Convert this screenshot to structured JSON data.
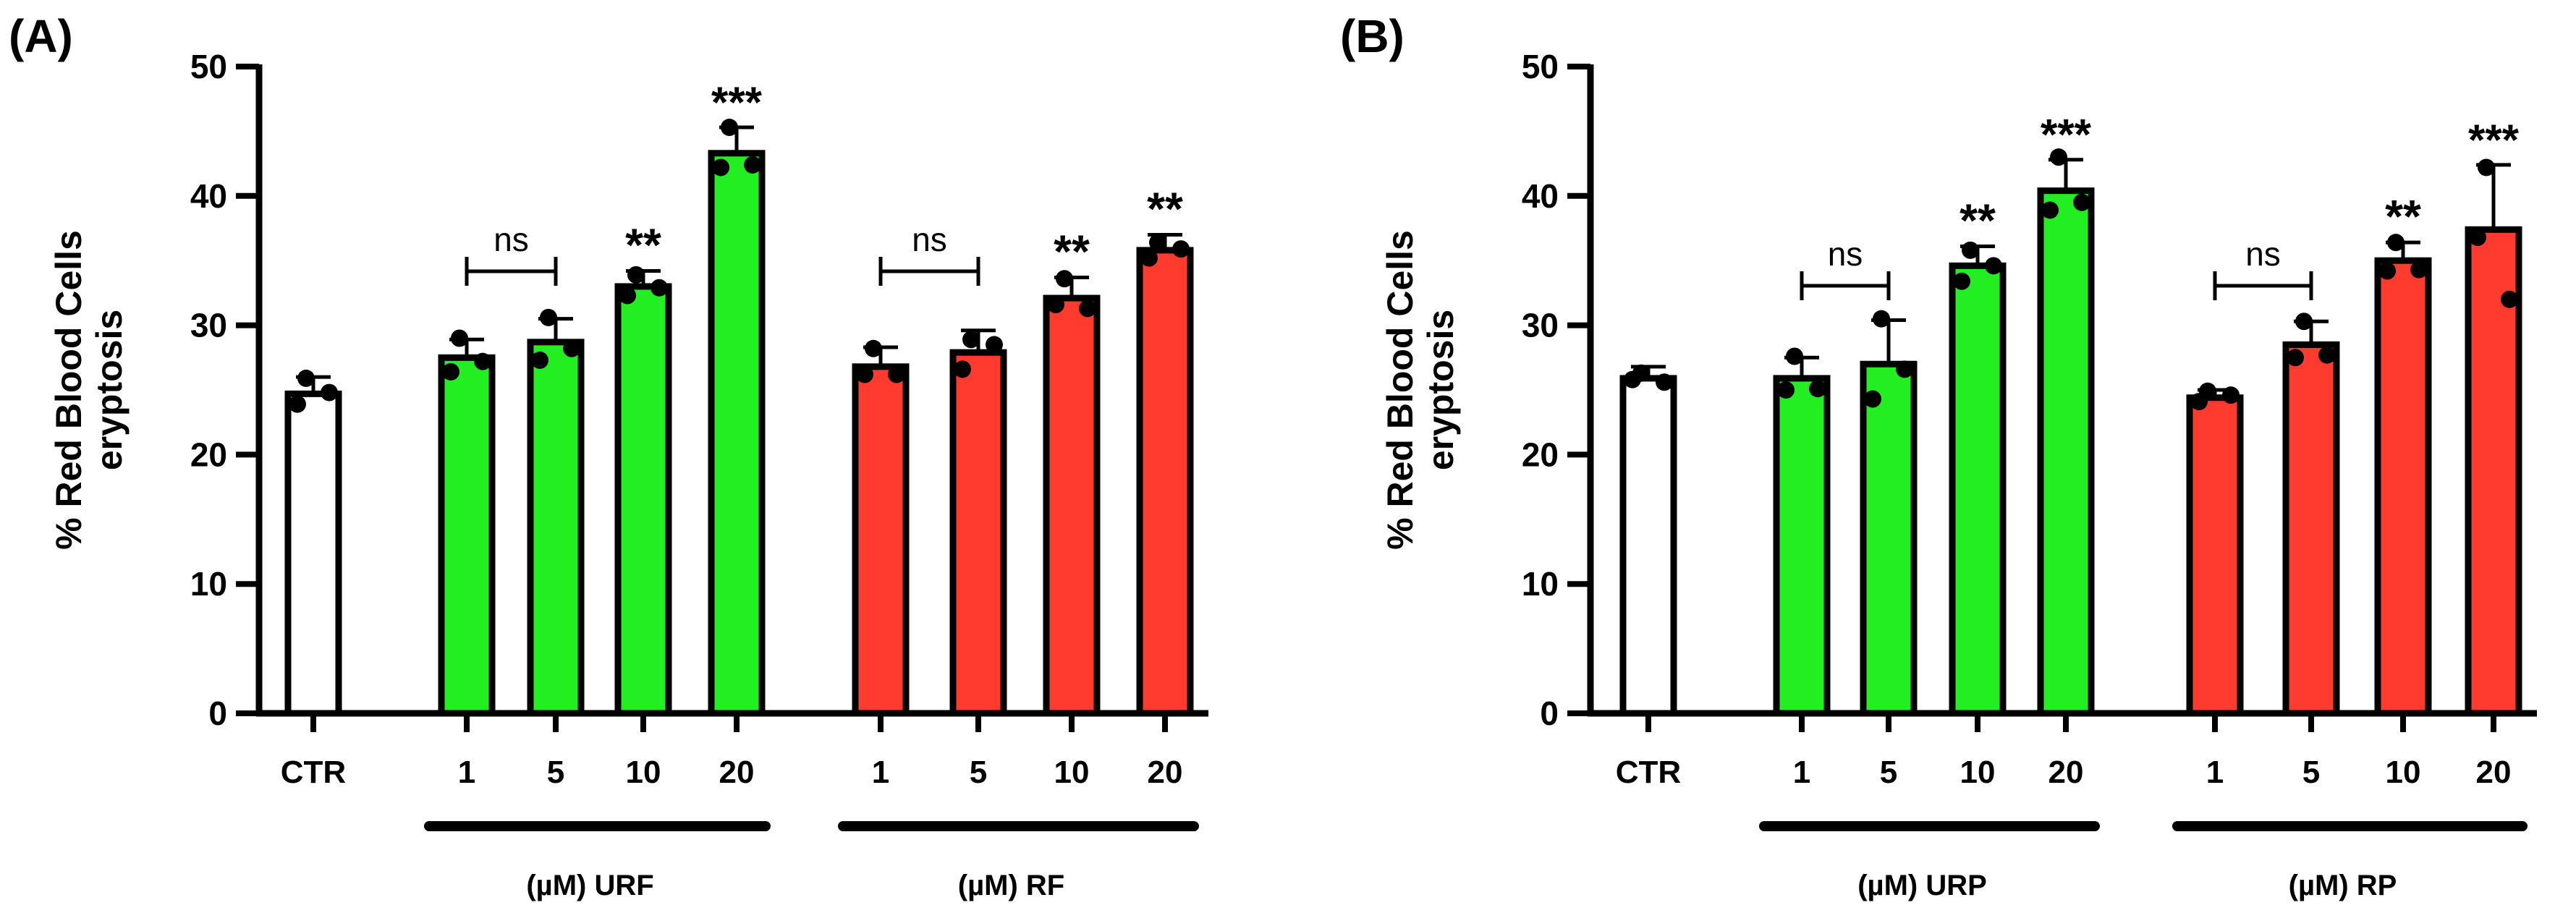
{
  "chart_data": [
    {
      "panel_label": "(A)",
      "type": "bar",
      "ylabel_line1": "% Red Blood Cells",
      "ylabel_line2": "eryptosis",
      "ylim": [
        0,
        50
      ],
      "yticks": [
        "0",
        "10",
        "20",
        "30",
        "40",
        "50"
      ],
      "ytick_values": [
        0,
        10,
        20,
        30,
        40,
        50
      ],
      "bars": [
        {
          "label": "CTR",
          "value": 24.7,
          "error": 1.3,
          "color": "#ffffff",
          "points": [
            25.9,
            23.9,
            24.8
          ],
          "sig": ""
        },
        {
          "label": "1",
          "value": 27.5,
          "error": 1.4,
          "color": "#22ee22",
          "points": [
            29.0,
            26.4,
            27.2
          ],
          "sig": ""
        },
        {
          "label": "5",
          "value": 28.7,
          "error": 1.8,
          "color": "#22ee22",
          "points": [
            30.6,
            27.3,
            28.2
          ],
          "sig": ""
        },
        {
          "label": "10",
          "value": 33.0,
          "error": 1.2,
          "color": "#22ee22",
          "points": [
            33.9,
            32.3,
            32.9
          ],
          "sig": "**"
        },
        {
          "label": "20",
          "value": 43.3,
          "error": 2.0,
          "color": "#22ee22",
          "points": [
            45.3,
            42.2,
            42.4
          ],
          "sig": "***"
        },
        {
          "label": "1",
          "value": 26.8,
          "error": 1.5,
          "color": "#ff3b30",
          "points": [
            28.2,
            26.2,
            26.2
          ],
          "sig": ""
        },
        {
          "label": "5",
          "value": 27.9,
          "error": 1.7,
          "color": "#ff3b30",
          "points": [
            28.9,
            26.6,
            28.5
          ],
          "sig": ""
        },
        {
          "label": "10",
          "value": 32.1,
          "error": 1.6,
          "color": "#ff3b30",
          "points": [
            33.6,
            31.6,
            31.3
          ],
          "sig": "**"
        },
        {
          "label": "20",
          "value": 35.8,
          "error": 1.2,
          "color": "#ff3b30",
          "points": [
            36.4,
            35.2,
            35.9
          ],
          "sig": "**"
        }
      ],
      "ns_brackets": [
        {
          "from_bar": 1,
          "to_bar": 2,
          "text": "ns"
        },
        {
          "from_bar": 5,
          "to_bar": 6,
          "text": "ns"
        }
      ],
      "groups": [
        {
          "label": "(µM) URF",
          "from_bar": 1,
          "to_bar": 4
        },
        {
          "label": "(µM) RF",
          "from_bar": 5,
          "to_bar": 8
        }
      ]
    },
    {
      "panel_label": "(B)",
      "type": "bar",
      "ylabel_line1": "% Red Blood Cells",
      "ylabel_line2": "eryptosis",
      "ylim": [
        0,
        50
      ],
      "yticks": [
        "0",
        "10",
        "20",
        "30",
        "40",
        "50"
      ],
      "ytick_values": [
        0,
        10,
        20,
        30,
        40,
        50
      ],
      "bars": [
        {
          "label": "CTR",
          "value": 25.9,
          "error": 0.9,
          "color": "#ffffff",
          "points": [
            26.3,
            25.8,
            25.6
          ],
          "sig": ""
        },
        {
          "label": "1",
          "value": 25.9,
          "error": 1.6,
          "color": "#22ee22",
          "points": [
            27.6,
            25.0,
            25.1
          ],
          "sig": ""
        },
        {
          "label": "5",
          "value": 27.0,
          "error": 3.4,
          "color": "#22ee22",
          "points": [
            30.5,
            24.3,
            26.6
          ],
          "sig": ""
        },
        {
          "label": "10",
          "value": 34.6,
          "error": 1.5,
          "color": "#22ee22",
          "points": [
            35.8,
            33.4,
            34.6
          ],
          "sig": "**"
        },
        {
          "label": "20",
          "value": 40.4,
          "error": 2.4,
          "color": "#22ee22",
          "points": [
            43.0,
            38.9,
            39.5
          ],
          "sig": "***"
        },
        {
          "label": "1",
          "value": 24.4,
          "error": 0.6,
          "color": "#ff3b30",
          "points": [
            24.9,
            24.1,
            24.6
          ],
          "sig": ""
        },
        {
          "label": "5",
          "value": 28.5,
          "error": 1.8,
          "color": "#ff3b30",
          "points": [
            30.3,
            27.5,
            27.7
          ],
          "sig": ""
        },
        {
          "label": "10",
          "value": 35.0,
          "error": 1.4,
          "color": "#ff3b30",
          "points": [
            36.4,
            34.2,
            34.3
          ],
          "sig": "**"
        },
        {
          "label": "20",
          "value": 37.4,
          "error": 5.0,
          "color": "#ff3b30",
          "points": [
            42.2,
            36.8,
            32.0
          ],
          "sig": "***"
        }
      ],
      "ns_brackets": [
        {
          "from_bar": 1,
          "to_bar": 2,
          "text": "ns"
        },
        {
          "from_bar": 5,
          "to_bar": 6,
          "text": "ns"
        }
      ],
      "groups": [
        {
          "label": "(µM) URP",
          "from_bar": 1,
          "to_bar": 4
        },
        {
          "label": "(µM) RP",
          "from_bar": 5,
          "to_bar": 8
        }
      ]
    }
  ]
}
